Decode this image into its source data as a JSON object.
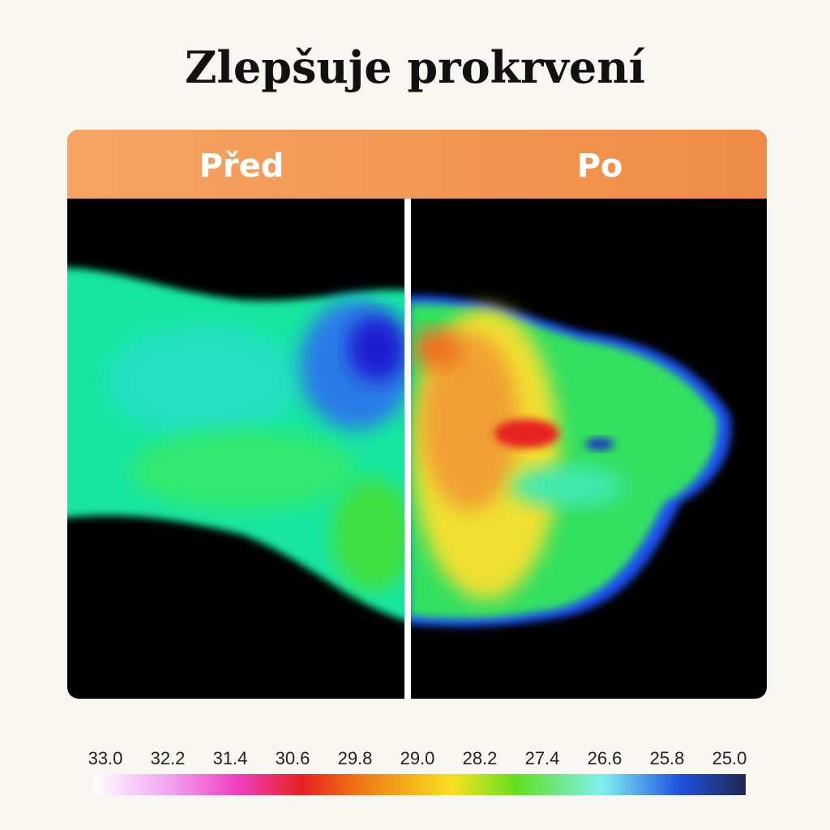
{
  "header": {
    "title": "Zlepšuje prokrvení"
  },
  "panels": [
    {
      "label": "Před"
    },
    {
      "label": "Po"
    }
  ],
  "scale": {
    "labels": [
      "33.0",
      "32.2",
      "31.4",
      "30.6",
      "29.8",
      "29.0",
      "28.2",
      "27.4",
      "26.6",
      "25.8",
      "25.0"
    ]
  }
}
